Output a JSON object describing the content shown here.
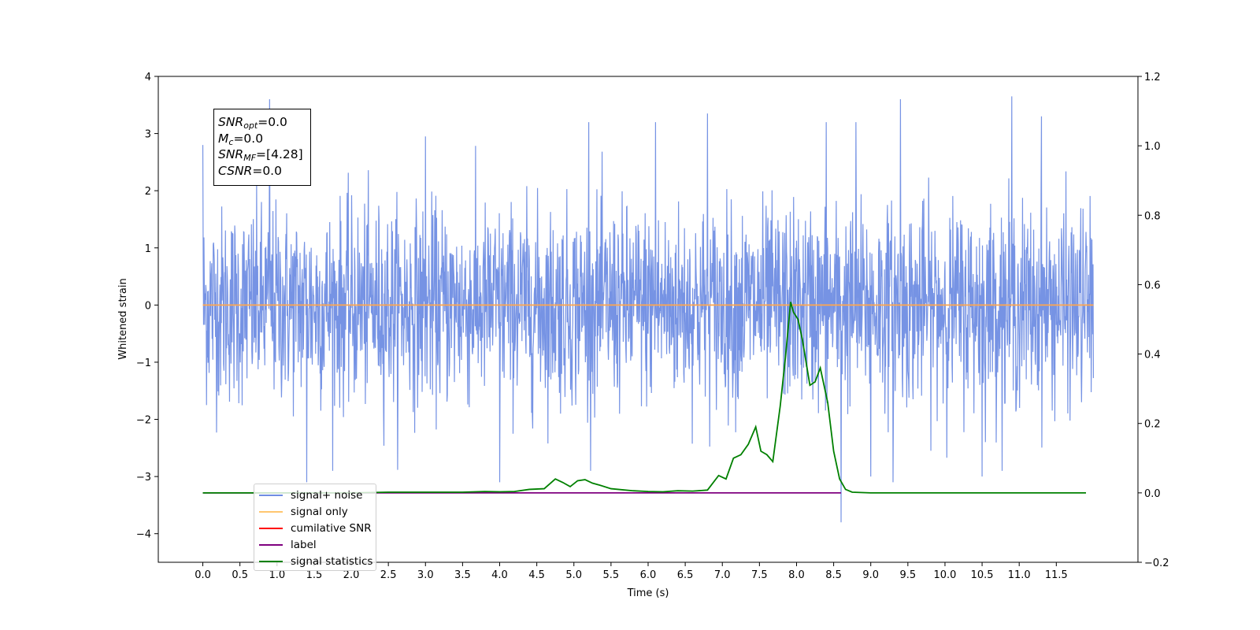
{
  "chart_data": {
    "type": "line",
    "xlabel": "Time (s)",
    "ylabel": "Whitened strain",
    "xlim": [
      -0.6,
      12.6
    ],
    "ylim": [
      -4.5,
      4.0
    ],
    "y2lim": [
      -0.2,
      1.2
    ],
    "x_ticks": [
      "0.0",
      "0.5",
      "1.0",
      "1.5",
      "2.0",
      "2.5",
      "3.0",
      "3.5",
      "4.0",
      "4.5",
      "5.0",
      "5.5",
      "6.0",
      "6.5",
      "7.0",
      "7.5",
      "8.0",
      "8.5",
      "9.0",
      "9.5",
      "10.0",
      "10.5",
      "11.0",
      "11.5"
    ],
    "y_ticks": [
      "4",
      "3",
      "2",
      "1",
      "0",
      "−1",
      "−2",
      "−3",
      "−4"
    ],
    "y2_ticks": [
      "1.2",
      "1.0",
      "0.8",
      "0.6",
      "0.4",
      "0.2",
      "0.0",
      "−0.2"
    ],
    "annotation": {
      "snr_opt": "=0.0",
      "mc": "=0.0",
      "snr_mf": "=[4.28]",
      "csnr": "=0.0"
    },
    "legend_location": "lower-left",
    "series": [
      {
        "name": "signal+ noise",
        "color": "#6f8de3",
        "axis": "left",
        "kind": "noise",
        "x_range": [
          0.0,
          12.0
        ],
        "std": 0.85,
        "notable_peaks": [
          [
            0.0,
            2.8
          ],
          [
            0.9,
            3.6
          ],
          [
            1.4,
            -3.1
          ],
          [
            3.0,
            2.95
          ],
          [
            4.0,
            -3.1
          ],
          [
            5.2,
            3.2
          ],
          [
            6.1,
            3.2
          ],
          [
            6.8,
            3.35
          ],
          [
            8.6,
            -3.8
          ],
          [
            8.4,
            3.2
          ],
          [
            8.8,
            3.2
          ],
          [
            9.0,
            -3.0
          ],
          [
            9.4,
            3.6
          ],
          [
            9.3,
            -3.1
          ],
          [
            10.5,
            -3.0
          ],
          [
            10.9,
            3.65
          ],
          [
            11.3,
            3.3
          ]
        ]
      },
      {
        "name": "signal only",
        "color": "#ffa64d",
        "axis": "left",
        "x": [
          0.0,
          12.0
        ],
        "y": [
          0.0,
          0.0
        ]
      },
      {
        "name": "cumilative SNR",
        "color": "#ff0000",
        "axis": "right",
        "x": [],
        "y": []
      },
      {
        "name": "label",
        "color": "#7f007f",
        "axis": "right",
        "x": [
          0.0,
          8.6
        ],
        "y": [
          0.0,
          0.0
        ]
      },
      {
        "name": "signal statistics",
        "color": "#008000",
        "axis": "right",
        "x": [
          0.0,
          0.5,
          1.0,
          1.5,
          2.0,
          2.5,
          3.0,
          3.5,
          3.8,
          4.0,
          4.2,
          4.4,
          4.6,
          4.75,
          4.85,
          4.95,
          5.05,
          5.15,
          5.25,
          5.35,
          5.5,
          5.8,
          6.0,
          6.2,
          6.4,
          6.6,
          6.8,
          6.95,
          7.05,
          7.15,
          7.25,
          7.35,
          7.45,
          7.52,
          7.6,
          7.68,
          7.78,
          7.85,
          7.92,
          7.96,
          8.02,
          8.08,
          8.18,
          8.25,
          8.32,
          8.42,
          8.5,
          8.58,
          8.66,
          8.75,
          9.0,
          10.0,
          11.0,
          11.9
        ],
        "y": [
          0.0,
          0.0,
          0.0,
          0.0,
          0.0,
          0.002,
          0.002,
          0.002,
          0.004,
          0.003,
          0.004,
          0.01,
          0.012,
          0.04,
          0.03,
          0.018,
          0.035,
          0.038,
          0.028,
          0.022,
          0.012,
          0.006,
          0.004,
          0.003,
          0.006,
          0.005,
          0.008,
          0.05,
          0.04,
          0.1,
          0.11,
          0.14,
          0.19,
          0.12,
          0.11,
          0.09,
          0.25,
          0.39,
          0.55,
          0.52,
          0.5,
          0.44,
          0.31,
          0.32,
          0.36,
          0.26,
          0.12,
          0.04,
          0.01,
          0.002,
          0.0,
          0.0,
          0.0,
          0.0
        ]
      }
    ]
  }
}
